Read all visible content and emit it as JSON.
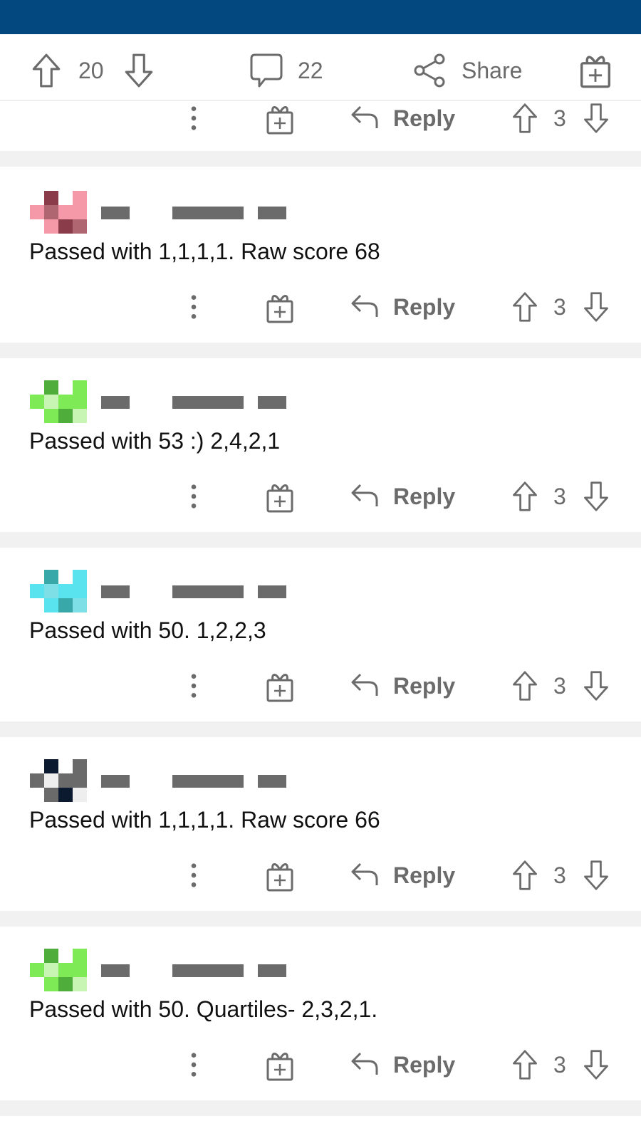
{
  "post_actions": {
    "upvotes": "20",
    "comments": "22",
    "share_label": "Share"
  },
  "partial_comment": {
    "reply_label": "Reply",
    "votes": "3"
  },
  "comments": [
    {
      "text": "Passed with 1,1,1,1. Raw score 68",
      "reply_label": "Reply",
      "votes": "3",
      "avatar_colors": [
        "#8a3c4a",
        "#f598a8",
        "#b06670"
      ]
    },
    {
      "text": "Passed with 53 :) 2,4,2,1",
      "reply_label": "Reply",
      "votes": "3",
      "avatar_colors": [
        "#4fae3b",
        "#7eea55",
        "#c9f5b4"
      ]
    },
    {
      "text": "Passed with 50. 1,2,2,3",
      "reply_label": "Reply",
      "votes": "3",
      "avatar_colors": [
        "#39a8a8",
        "#58e3ee",
        "#7fdfe6"
      ]
    },
    {
      "text": "Passed with 1,1,1,1. Raw score 66",
      "reply_label": "Reply",
      "votes": "3",
      "avatar_colors": [
        "#0b1a2e",
        "#6a6a6a",
        "#eeeeee"
      ]
    },
    {
      "text": "Passed with 50. Quartiles- 2,3,2,1.",
      "reply_label": "Reply",
      "votes": "3",
      "avatar_colors": [
        "#4fae3b",
        "#7eea55",
        "#c9f5b4"
      ]
    }
  ],
  "colors": {
    "header": "#03497f",
    "icon": "#6b6b6b",
    "separator": "#f1f1f1"
  }
}
